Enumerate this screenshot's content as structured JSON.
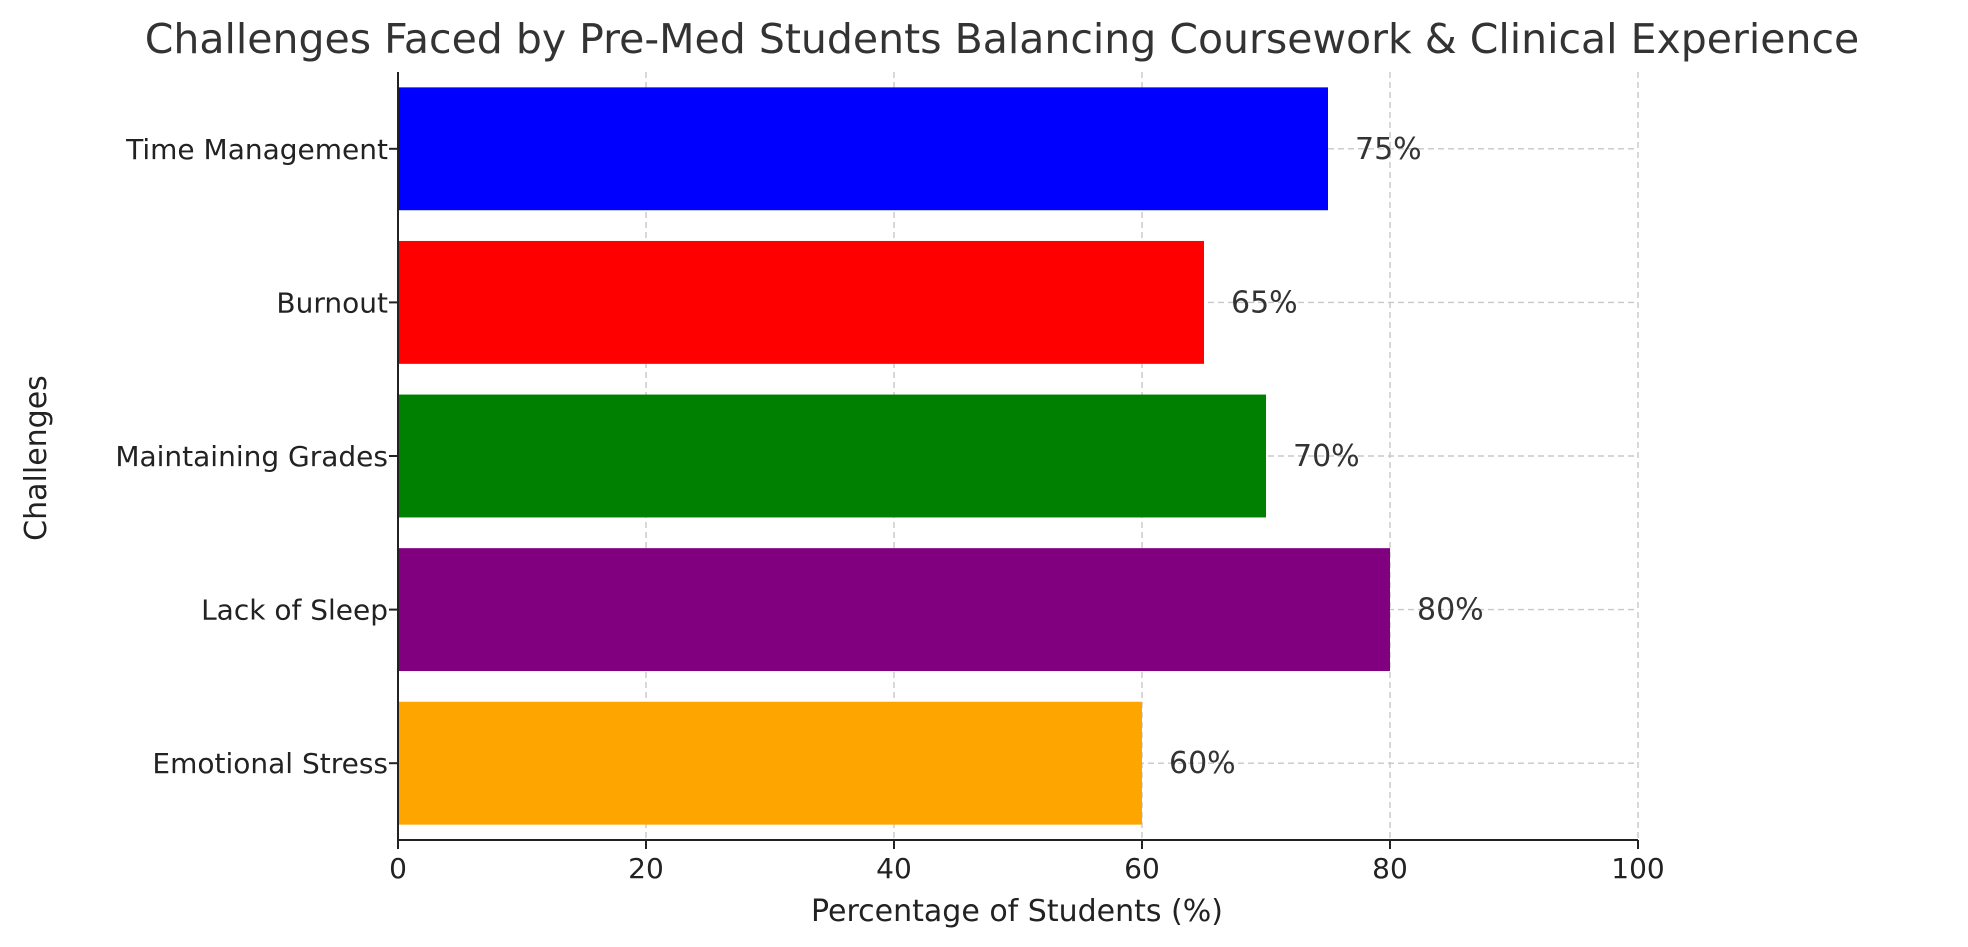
{
  "chart_data": {
    "type": "bar",
    "orientation": "horizontal",
    "title": "Challenges Faced by Pre-Med Students Balancing Coursework & Clinical Experience",
    "xlabel": "Percentage of Students (%)",
    "ylabel": "Challenges",
    "categories": [
      "Time Management",
      "Burnout",
      "Maintaining Grades",
      "Lack of Sleep",
      "Emotional Stress"
    ],
    "values": [
      75,
      65,
      70,
      80,
      60
    ],
    "data_labels": [
      "75%",
      "65%",
      "70%",
      "80%",
      "60%"
    ],
    "colors": [
      "#0000ff",
      "#ff0000",
      "#008000",
      "#800080",
      "#ffa500"
    ],
    "xlim": [
      0,
      100
    ],
    "xticks": [
      0,
      20,
      40,
      60,
      80,
      100
    ],
    "xtick_labels": [
      "0",
      "20",
      "40",
      "60",
      "80",
      "100"
    ],
    "grid": true,
    "grid_style": "dashed"
  }
}
